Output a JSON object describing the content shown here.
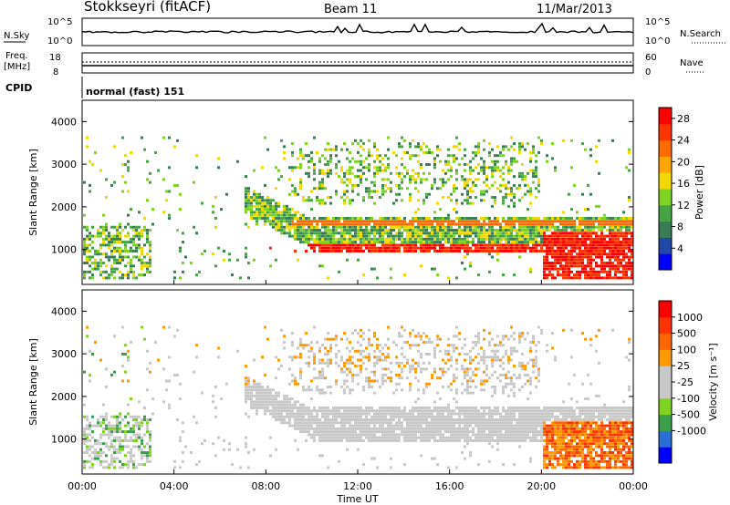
{
  "header": {
    "station": "Stokkseyri (fitACF)",
    "beam": "Beam 11",
    "date": "11/Mar/2013"
  },
  "top_panels": {
    "nsky_label": "N.Sky",
    "nsky_ticks": [
      "10^5",
      "10^0"
    ],
    "nsearch_label": "N.Search",
    "nsearch_ticks": [
      "10^5",
      "10^0"
    ],
    "freq_label": "Freq.",
    "freq_unit": "[MHz]",
    "freq_ticks": [
      "18",
      "8"
    ],
    "nave_label": "Nave",
    "nave_ticks": [
      "60",
      "0"
    ],
    "cpid_label": "CPID",
    "cpid_text": "normal (fast) 151"
  },
  "chart_data": [
    {
      "type": "heatmap",
      "title": "",
      "ylabel": "Slant Range [km]",
      "ylim": [
        180,
        4500
      ],
      "yticks": [
        "1000",
        "2000",
        "3000",
        "4000"
      ],
      "xlim": [
        0,
        24
      ],
      "colorbar": {
        "label": "Power [dB]",
        "range": [
          0,
          30
        ],
        "ticks": [
          "4",
          "8",
          "12",
          "16",
          "20",
          "24",
          "28"
        ],
        "colors": [
          "#0000ff",
          "#2347a8",
          "#3a7d55",
          "#46a346",
          "#7ed321",
          "#f0d800",
          "#ffa500",
          "#ff6a00",
          "#ff3300",
          "#ff0000"
        ]
      }
    },
    {
      "type": "heatmap",
      "title": "",
      "ylabel": "Slant Range [km]",
      "ylim": [
        180,
        4500
      ],
      "yticks": [
        "1000",
        "2000",
        "3000",
        "4000"
      ],
      "xlabel": "Time UT",
      "xticks": [
        "00:00",
        "04:00",
        "08:00",
        "12:00",
        "16:00",
        "20:00",
        "00:00"
      ],
      "colorbar": {
        "label": "Velocity [m s⁻¹]",
        "ticks": [
          "1000",
          "500",
          "100",
          "25",
          "-25",
          "-100",
          "-500",
          "-1000"
        ],
        "colors": [
          "#0000ff",
          "#2a6fd6",
          "#3b9e4a",
          "#7ed321",
          "#c8c8c8",
          "#c8c8c8",
          "#ff9900",
          "#ff6600",
          "#ff3300",
          "#ff0000"
        ]
      }
    }
  ]
}
